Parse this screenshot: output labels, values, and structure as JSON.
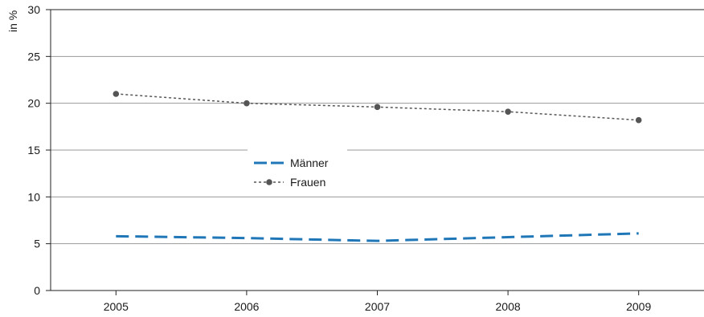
{
  "chart_data": {
    "type": "line",
    "title": "",
    "xlabel": "",
    "ylabel": "in %",
    "x": [
      2005,
      2006,
      2007,
      2008,
      2009
    ],
    "ylim": [
      0,
      30
    ],
    "yticks": [
      0,
      5,
      10,
      15,
      20,
      25,
      30
    ],
    "grid": true,
    "legend_position": "center-left",
    "series": [
      {
        "name": "Männer",
        "values": [
          5.8,
          5.6,
          5.3,
          5.7,
          6.1
        ],
        "color": "#1f77b8",
        "style": "dashed"
      },
      {
        "name": "Frauen",
        "values": [
          21.0,
          20.0,
          19.6,
          19.1,
          18.2
        ],
        "color": "#555555",
        "style": "dotted-with-markers"
      }
    ]
  }
}
